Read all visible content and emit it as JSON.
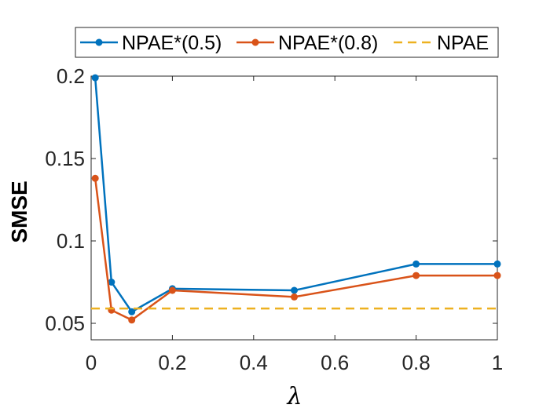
{
  "chart_data": {
    "type": "line",
    "xlabel": "λ",
    "ylabel": "SMSE",
    "xlim": [
      0,
      1
    ],
    "ylim": [
      0.04,
      0.2
    ],
    "x_ticks": [
      0,
      0.2,
      0.4,
      0.6,
      0.8,
      1
    ],
    "x_tick_labels": [
      "0",
      "0.2",
      "0.4",
      "0.6",
      "0.8",
      "1"
    ],
    "y_ticks": [
      0.05,
      0.1,
      0.15,
      0.2
    ],
    "y_tick_labels": [
      "0.05",
      "0.1",
      "0.15",
      "0.2"
    ],
    "grid": false,
    "legend_position": "top",
    "x": [
      0.01,
      0.05,
      0.1,
      0.2,
      0.5,
      0.8,
      1
    ],
    "series": [
      {
        "name": "NPAE*(0.5)",
        "color": "#0072BD",
        "style": "solid-marker",
        "values": [
          0.199,
          0.075,
          0.057,
          0.071,
          0.07,
          0.086,
          0.086
        ]
      },
      {
        "name": "NPAE*(0.8)",
        "color": "#D95319",
        "style": "solid-marker",
        "values": [
          0.138,
          0.058,
          0.052,
          0.07,
          0.066,
          0.079,
          0.079
        ]
      },
      {
        "name": "NPAE",
        "color": "#EDB120",
        "style": "dashed",
        "constant": 0.059
      }
    ]
  }
}
